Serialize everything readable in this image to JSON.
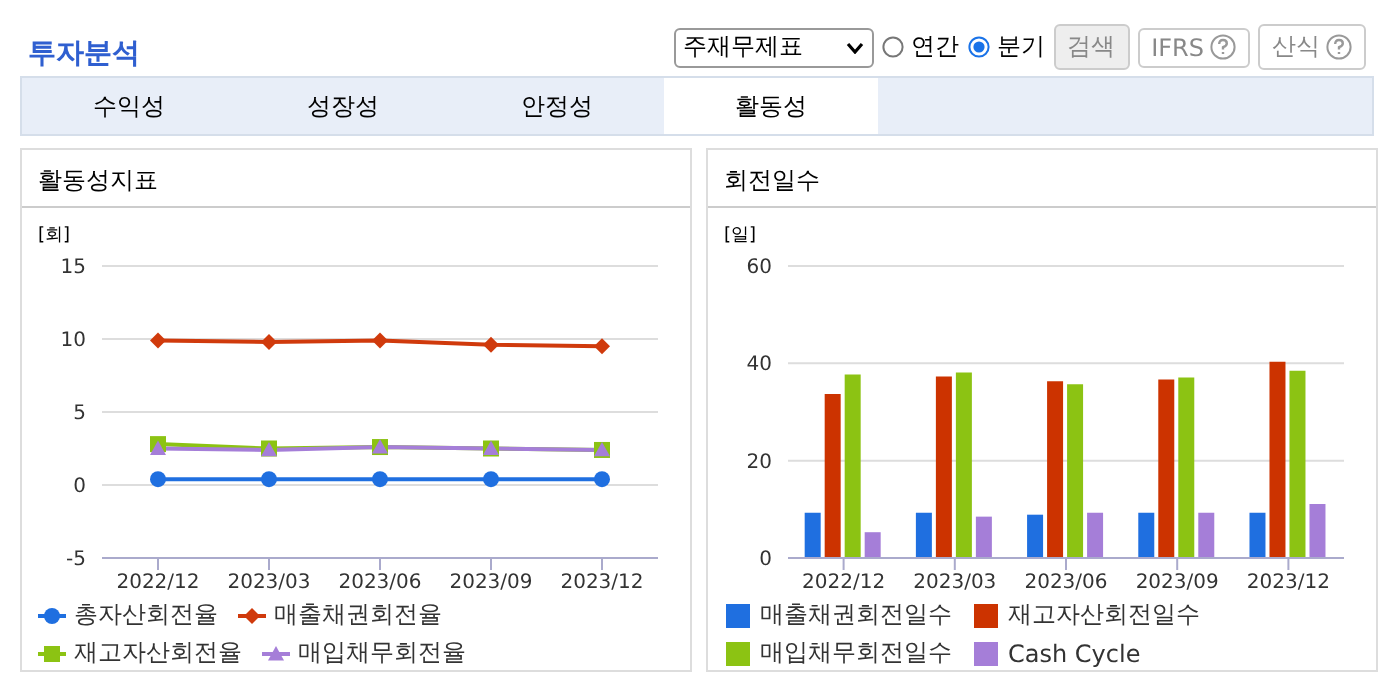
{
  "chart_data": [
    {
      "type": "other",
      "title": "투자분석",
      "annotations": [
        "주재무제표",
        "연간",
        "분기",
        "검색",
        "IFRS",
        "산식",
        "수익성",
        "성장성",
        "안정성",
        "활동성"
      ]
    },
    {
      "type": "line",
      "title": "활동성지표",
      "ylabel": "[회]",
      "categories": [
        "2022/12",
        "2023/03",
        "2023/06",
        "2023/09",
        "2023/12"
      ],
      "ylim": [
        -5,
        15
      ],
      "yticks": [
        -5,
        0,
        5,
        10,
        15
      ],
      "grid": "y",
      "legend": "bottom",
      "series": [
        {
          "name": "총자산회전율",
          "color": "#1f6fe0",
          "marker": "circle",
          "values": [
            0.4,
            0.4,
            0.4,
            0.4,
            0.4
          ]
        },
        {
          "name": "매출채권회전율",
          "color": "#d03a0c",
          "marker": "diamond",
          "values": [
            9.9,
            9.8,
            9.9,
            9.6,
            9.5
          ]
        },
        {
          "name": "재고자산회전율",
          "color": "#8cc313",
          "marker": "square",
          "values": [
            2.8,
            2.5,
            2.6,
            2.5,
            2.4
          ]
        },
        {
          "name": "매입채무회전율",
          "color": "#a57ed8",
          "marker": "triangle",
          "values": [
            2.5,
            2.4,
            2.6,
            2.5,
            2.4
          ]
        }
      ]
    },
    {
      "type": "bar",
      "title": "회전일수",
      "ylabel": "[일]",
      "categories": [
        "2022/12",
        "2023/03",
        "2023/06",
        "2023/09",
        "2023/12"
      ],
      "ylim": [
        0,
        60
      ],
      "yticks": [
        0,
        20,
        40,
        60
      ],
      "grid": "y",
      "legend": "bottom",
      "series": [
        {
          "name": "매출채권회전일수",
          "color": "#1f6fe0",
          "values": [
            9.3,
            9.3,
            8.9,
            9.3,
            9.3
          ]
        },
        {
          "name": "재고자산회전일수",
          "color": "#cc3300",
          "values": [
            33.7,
            37.3,
            36.3,
            36.7,
            40.3
          ]
        },
        {
          "name": "매입채무회전일수",
          "color": "#8cc313",
          "values": [
            37.7,
            38.1,
            35.7,
            37.1,
            38.5
          ]
        },
        {
          "name": "Cash Cycle",
          "color": "#a57ed8",
          "values": [
            5.3,
            8.5,
            9.3,
            9.3,
            11.1
          ]
        }
      ]
    }
  ]
}
